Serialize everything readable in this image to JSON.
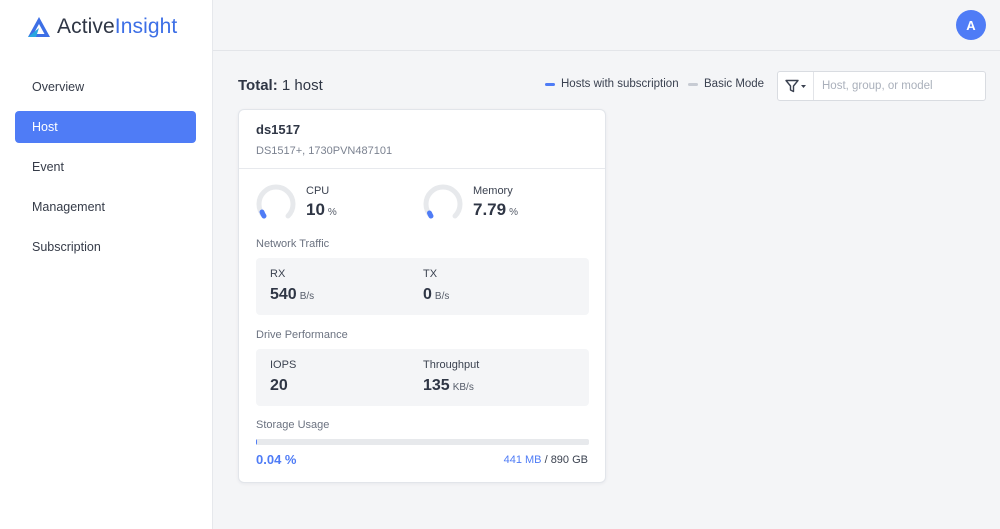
{
  "app": {
    "name_part1": "Active",
    "name_part2": "Insight",
    "brand_color": "#3d6fe6",
    "accent": "#4f7cf6"
  },
  "sidebar": {
    "items": [
      {
        "label": "Overview",
        "active": false
      },
      {
        "label": "Host",
        "active": true
      },
      {
        "label": "Event",
        "active": false
      },
      {
        "label": "Management",
        "active": false
      },
      {
        "label": "Subscription",
        "active": false
      }
    ]
  },
  "header": {
    "avatar_initial": "A"
  },
  "main": {
    "total_label": "Total:",
    "total_value": "1 host",
    "legend": [
      {
        "label": "Hosts with subscription",
        "color": "#4f7cf6"
      },
      {
        "label": "Basic Mode",
        "color": "#c7cbd3"
      }
    ],
    "filter": {
      "placeholder": "Host, group, or model",
      "value": "",
      "icon": "filter-icon"
    }
  },
  "host_card": {
    "name": "ds1517",
    "model": "DS1517+, 1730PVN487101",
    "cpu": {
      "label": "CPU",
      "value": "10",
      "unit": "%",
      "level": 0.1
    },
    "memory": {
      "label": "Memory",
      "value": "7.79",
      "unit": "%",
      "level": 0.0779
    },
    "network": {
      "title": "Network Traffic",
      "rx": {
        "label": "RX",
        "value": "540",
        "unit": "B/s"
      },
      "tx": {
        "label": "TX",
        "value": "0",
        "unit": "B/s"
      }
    },
    "drive": {
      "title": "Drive Performance",
      "iops": {
        "label": "IOPS",
        "value": "20"
      },
      "throughput": {
        "label": "Throughput",
        "value": "135",
        "unit": "KB/s"
      }
    },
    "storage": {
      "title": "Storage Usage",
      "percent_text": "0.04 %",
      "used": "441 MB",
      "separator": "/",
      "total": "890 GB",
      "fraction": 0.0004
    }
  }
}
